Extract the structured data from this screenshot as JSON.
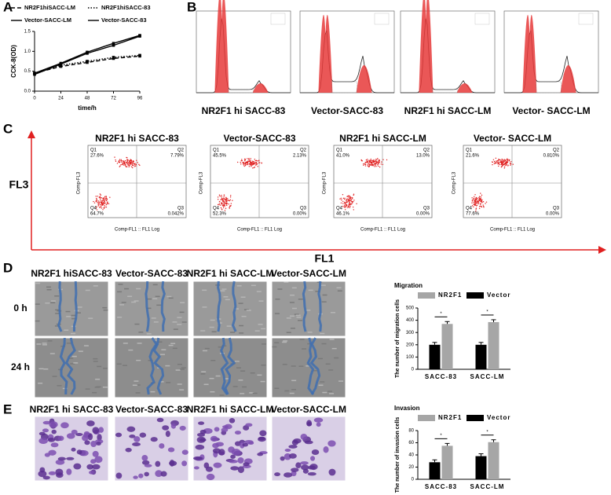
{
  "panel_labels": [
    "A",
    "B",
    "C",
    "D",
    "E"
  ],
  "cell_cycle": {
    "captions": [
      "NR2F1 hi SACC-83",
      "Vector-SACC-83",
      "NR2F1 hi SACC-LM",
      "Vector- SACC-LM"
    ]
  },
  "flow": {
    "y_axis": "FL3",
    "x_axis": "FL1",
    "x_title": "Comp-FL1 :: FL1 Log",
    "y_title": "Comp-FL3",
    "plots": [
      {
        "title": "NR2F1 hi SACC-83",
        "quadrants": [
          {
            "name": "Q1",
            "pct": "27.6%"
          },
          {
            "name": "Q2",
            "pct": "7.79%"
          },
          {
            "name": "Q3",
            "pct": "0.042%"
          },
          {
            "name": "Q4",
            "pct": "64.7%"
          }
        ]
      },
      {
        "title": "Vector-SACC-83",
        "quadrants": [
          {
            "name": "Q1",
            "pct": "45.5%"
          },
          {
            "name": "Q2",
            "pct": "2.13%"
          },
          {
            "name": "Q3",
            "pct": "0.00%"
          },
          {
            "name": "Q4",
            "pct": "52.3%"
          }
        ]
      },
      {
        "title": "NR2F1 hi SACC-LM",
        "quadrants": [
          {
            "name": "Q1",
            "pct": "41.0%"
          },
          {
            "name": "Q2",
            "pct": "13.0%"
          },
          {
            "name": "Q3",
            "pct": "0.00%"
          },
          {
            "name": "Q4",
            "pct": "46.1%"
          }
        ]
      },
      {
        "title": "Vector- SACC-LM",
        "quadrants": [
          {
            "name": "Q1",
            "pct": "21.6%"
          },
          {
            "name": "Q2",
            "pct": "0.810%"
          },
          {
            "name": "Q3",
            "pct": "0.00%"
          },
          {
            "name": "Q4",
            "pct": "77.6%"
          }
        ]
      }
    ]
  },
  "scratch": {
    "columns": [
      "NR2F1 hiSACC-83",
      "Vector-SACC-83",
      "NR2F1 hi SACC-LM",
      "Vector-SACC-LM"
    ],
    "rows": [
      "0 h",
      "24 h"
    ]
  },
  "invasion_images": {
    "columns": [
      "NR2F1 hi SACC-83",
      "Vector-SACC-83",
      "NR2F1 hi SACC-LM",
      "Vector-SACC-LM"
    ]
  },
  "chart_data": [
    {
      "type": "line",
      "x_label": "time/h",
      "y_label": "CCK-8(OD)",
      "x": [
        0,
        24,
        48,
        72,
        96
      ],
      "xlim": [
        0,
        96
      ],
      "xticks": [
        0,
        24,
        48,
        72,
        96
      ],
      "ylim": [
        0,
        1.5
      ],
      "yticks": [
        {
          "value": 0,
          "label": "0.0"
        },
        0.5,
        {
          "value": 1,
          "label": "1.0"
        },
        1.5
      ],
      "series": [
        {
          "name": "NR2F1hiSACC-LM",
          "color": "#000000",
          "line_style": "dashed",
          "values": [
            0.45,
            0.62,
            0.72,
            0.82,
            0.88
          ]
        },
        {
          "name": "NR2F1hiSACC-83",
          "color": "#000000",
          "line_style": "dotted",
          "values": [
            0.45,
            0.65,
            0.75,
            0.85,
            0.9
          ]
        },
        {
          "name": "Vector-SACC-LM",
          "color": "#000000",
          "line_style": "solid",
          "values": [
            0.42,
            0.68,
            0.95,
            1.15,
            1.38
          ]
        },
        {
          "name": "Vector-SACC-83",
          "color": "#000000",
          "line_style": "solid",
          "values": [
            0.45,
            0.7,
            0.98,
            1.2,
            1.4
          ]
        }
      ]
    },
    {
      "type": "bar",
      "title": "Migration",
      "y_label": "The number of migration cells",
      "significance": "*",
      "categories": [
        "SACC-83",
        "SACC-LM"
      ],
      "ylim": [
        0,
        500
      ],
      "yticks": [
        0,
        100,
        200,
        300,
        400,
        500
      ],
      "series": [
        {
          "name": "NR2F1",
          "color": "#a6a6a6",
          "values": [
            370,
            385
          ]
        },
        {
          "name": "Vector",
          "color": "#000000",
          "values": [
            200,
            200
          ]
        }
      ]
    },
    {
      "type": "bar",
      "title": "Invasion",
      "y_label": "The number of invasion cells",
      "significance": "*",
      "categories": [
        "SACC-83",
        "SACC-LM"
      ],
      "ylim": [
        0,
        80
      ],
      "yticks": [
        0,
        20,
        40,
        60,
        80
      ],
      "series": [
        {
          "name": "NR2F1",
          "color": "#a6a6a6",
          "values": [
            55,
            61
          ]
        },
        {
          "name": "Vector",
          "color": "#000000",
          "values": [
            28,
            38
          ]
        }
      ]
    }
  ]
}
